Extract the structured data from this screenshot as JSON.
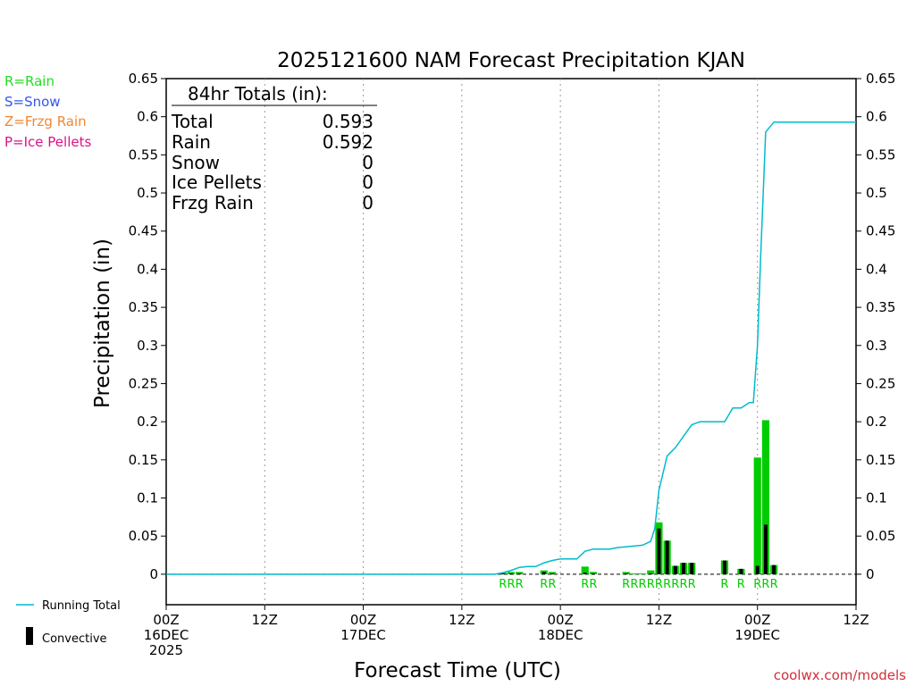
{
  "chart_data": {
    "type": "bar",
    "title": "2025121600 NAM Forecast Precipitation KJAN",
    "ylabel": "Precipitation (in)",
    "xlabel": "Forecast Time (UTC)",
    "ylim": [
      -0.04,
      0.65
    ],
    "yticks": [
      0,
      0.05,
      0.1,
      0.15,
      0.2,
      0.25,
      0.3,
      0.35,
      0.4,
      0.45,
      0.5,
      0.55,
      0.6,
      0.65
    ],
    "ytick_labels": [
      "0",
      "0.05",
      "0.1",
      "0.15",
      "0.2",
      "0.25",
      "0.3",
      "0.35",
      "0.4",
      "0.45",
      "0.5",
      "0.55",
      "0.6",
      "0.65"
    ],
    "xlim_hours": [
      0,
      84
    ],
    "xticks": [
      {
        "hour": 0,
        "line1": "00Z",
        "line2": "16DEC",
        "line3": "2025"
      },
      {
        "hour": 12,
        "line1": "12Z",
        "line2": "",
        "line3": ""
      },
      {
        "hour": 24,
        "line1": "00Z",
        "line2": "17DEC",
        "line3": ""
      },
      {
        "hour": 36,
        "line1": "12Z",
        "line2": "",
        "line3": ""
      },
      {
        "hour": 48,
        "line1": "00Z",
        "line2": "18DEC",
        "line3": ""
      },
      {
        "hour": 60,
        "line1": "12Z",
        "line2": "",
        "line3": ""
      },
      {
        "hour": 72,
        "line1": "00Z",
        "line2": "19DEC",
        "line3": ""
      },
      {
        "hour": 84,
        "line1": "12Z",
        "line2": "",
        "line3": ""
      }
    ],
    "grid_x": true,
    "legend": {
      "precip_types": [
        {
          "label": "R=Rain",
          "color": "#22dd22"
        },
        {
          "label": "S=Snow",
          "color": "#3355ee"
        },
        {
          "label": "Z=Frzg Rain",
          "color": "#ee8833"
        },
        {
          "label": "P=Ice Pellets",
          "color": "#dd1188"
        }
      ],
      "running_total_label": "Running Total",
      "convective_label": "Convective",
      "running_total_color": "#00bbcc",
      "convective_color": "#000000"
    },
    "totals_box": {
      "header": "84hr Totals (in):",
      "rows": [
        {
          "label": "Total",
          "value": "0.593"
        },
        {
          "label": "Rain",
          "value": "0.592"
        },
        {
          "label": "Snow",
          "value": "0"
        },
        {
          "label": "Ice Pellets",
          "value": "0"
        },
        {
          "label": "Frzg Rain",
          "value": "0"
        }
      ]
    },
    "bar_color": "#00cc00",
    "bars": [
      {
        "hour": 41,
        "total": 0.002,
        "convective": 0.001
      },
      {
        "hour": 42,
        "total": 0.003,
        "convective": 0.001
      },
      {
        "hour": 43,
        "total": 0.003,
        "convective": 0.001
      },
      {
        "hour": 46,
        "total": 0.005,
        "convective": 0.003
      },
      {
        "hour": 47,
        "total": 0.003,
        "convective": 0.001
      },
      {
        "hour": 51,
        "total": 0.01,
        "convective": 0.002
      },
      {
        "hour": 52,
        "total": 0.003,
        "convective": 0.001
      },
      {
        "hour": 56,
        "total": 0.003,
        "convective": 0.001
      },
      {
        "hour": 57,
        "total": 0.001,
        "convective": 0.0
      },
      {
        "hour": 58,
        "total": 0.001,
        "convective": 0.0
      },
      {
        "hour": 59,
        "total": 0.005,
        "convective": 0.001
      },
      {
        "hour": 60,
        "total": 0.068,
        "convective": 0.06
      },
      {
        "hour": 61,
        "total": 0.044,
        "convective": 0.044
      },
      {
        "hour": 62,
        "total": 0.011,
        "convective": 0.011
      },
      {
        "hour": 63,
        "total": 0.015,
        "convective": 0.015
      },
      {
        "hour": 64,
        "total": 0.015,
        "convective": 0.015
      },
      {
        "hour": 68,
        "total": 0.018,
        "convective": 0.018
      },
      {
        "hour": 70,
        "total": 0.007,
        "convective": 0.007
      },
      {
        "hour": 72,
        "total": 0.153,
        "convective": 0.011
      },
      {
        "hour": 73,
        "total": 0.202,
        "convective": 0.065
      },
      {
        "hour": 74,
        "total": 0.012,
        "convective": 0.012
      }
    ],
    "ptype_labels": [
      {
        "hour": 41,
        "text": "R"
      },
      {
        "hour": 42,
        "text": "R"
      },
      {
        "hour": 43,
        "text": "R"
      },
      {
        "hour": 46,
        "text": "R"
      },
      {
        "hour": 47,
        "text": "R"
      },
      {
        "hour": 51,
        "text": "R"
      },
      {
        "hour": 52,
        "text": "R"
      },
      {
        "hour": 56,
        "text": "R"
      },
      {
        "hour": 57,
        "text": "R"
      },
      {
        "hour": 58,
        "text": "R"
      },
      {
        "hour": 59,
        "text": "R"
      },
      {
        "hour": 60,
        "text": "R"
      },
      {
        "hour": 61,
        "text": "R"
      },
      {
        "hour": 62,
        "text": "R"
      },
      {
        "hour": 63,
        "text": "R"
      },
      {
        "hour": 64,
        "text": "R"
      },
      {
        "hour": 68,
        "text": "R"
      },
      {
        "hour": 70,
        "text": "R"
      },
      {
        "hour": 72,
        "text": "R"
      },
      {
        "hour": 73,
        "text": "R"
      },
      {
        "hour": 74,
        "text": "R"
      }
    ],
    "running_total": {
      "hours": [
        0,
        40,
        41,
        42,
        43,
        44,
        45,
        46,
        47,
        48,
        49,
        50,
        51,
        52,
        53,
        54,
        55,
        56,
        57,
        58,
        59,
        59.5,
        60,
        61,
        62,
        63,
        64,
        65,
        66,
        67,
        68,
        69,
        70,
        71,
        71.5,
        72,
        72.4,
        73,
        74,
        84
      ],
      "values": [
        0,
        0,
        0.002,
        0.005,
        0.009,
        0.01,
        0.01,
        0.015,
        0.018,
        0.02,
        0.02,
        0.02,
        0.03,
        0.033,
        0.033,
        0.033,
        0.035,
        0.036,
        0.037,
        0.038,
        0.043,
        0.06,
        0.11,
        0.155,
        0.166,
        0.181,
        0.196,
        0.2,
        0.2,
        0.2,
        0.2,
        0.218,
        0.218,
        0.225,
        0.225,
        0.3,
        0.42,
        0.58,
        0.593,
        0.593
      ]
    }
  },
  "credit": "coolwx.com/models"
}
